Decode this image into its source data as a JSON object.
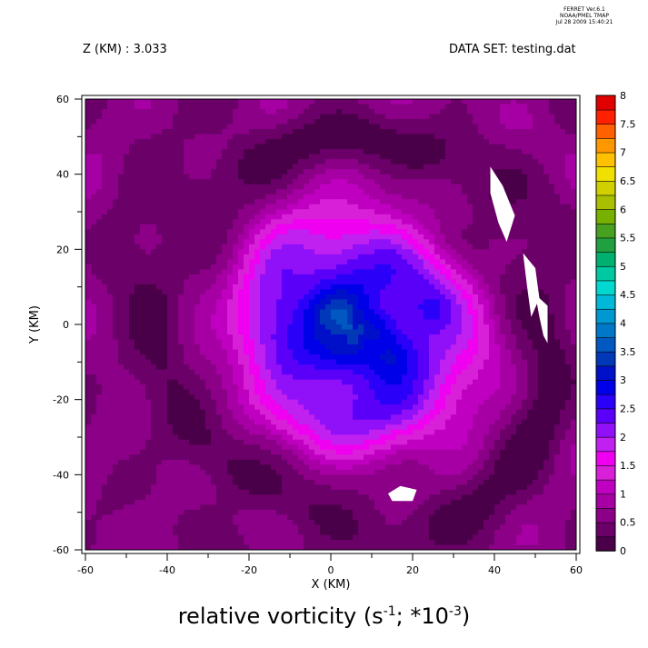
{
  "stamp": {
    "line1": "FERRET  Ver.6.1",
    "line2": "NOAA/PMEL TMAP",
    "line3": "Jul 28 2009 15:40:21"
  },
  "header": {
    "left": "Z (KM) : 3.033",
    "right": "DATA SET: testing.dat"
  },
  "caption": {
    "text_a": "relative vorticity (s",
    "exp1": "-1",
    "text_b": "; *10",
    "exp2": "-3",
    "text_c": ")"
  },
  "chart_data": {
    "type": "heatmap",
    "title": "relative vorticity (s-1; *10-3)",
    "xlabel": "X (KM)",
    "ylabel": "Y (KM)",
    "xlim": [
      -60,
      60
    ],
    "ylim": [
      -60,
      60
    ],
    "x_ticks": [
      -60,
      -40,
      -20,
      0,
      20,
      40,
      60
    ],
    "y_ticks": [
      -60,
      -40,
      -20,
      0,
      20,
      40,
      60
    ],
    "z_level_km": 3.033,
    "colorbar": {
      "levels": [
        0,
        0.25,
        0.5,
        0.75,
        1,
        1.25,
        1.5,
        1.75,
        2,
        2.25,
        2.5,
        2.75,
        3,
        3.25,
        3.5,
        3.75,
        4,
        4.25,
        4.5,
        4.75,
        5,
        5.25,
        5.5,
        5.75,
        6,
        6.25,
        6.5,
        6.75,
        7,
        7.25,
        7.5,
        7.75,
        8
      ],
      "labels": [
        "0",
        "0.5",
        "1",
        "1.5",
        "2",
        "2.5",
        "3",
        "3.5",
        "4",
        "4.5",
        "5",
        "5.5",
        "6",
        "6.5",
        "7",
        "7.5",
        "8"
      ],
      "colors": [
        "#4a0048",
        "#6a0068",
        "#8c0088",
        "#a600a4",
        "#c000c0",
        "#d820d8",
        "#f000f0",
        "#c020f0",
        "#9010f8",
        "#5a00f8",
        "#2a00f8",
        "#0000e8",
        "#0010c8",
        "#0038b8",
        "#0058c0",
        "#0078c8",
        "#0098d0",
        "#00b8d8",
        "#00d8d0",
        "#00c8a0",
        "#00b070",
        "#20a040",
        "#48a020",
        "#78b000",
        "#a8c000",
        "#d0d000",
        "#f0e000",
        "#ffc000",
        "#ff9800",
        "#ff6000",
        "#ff2000",
        "#e00000",
        "#a00000",
        "#700000"
      ]
    },
    "field_shape": "vortex: low vorticity (0-0.75) in the outer domain, a pink ring (1-1.75) around radius ~25-35 km, and a blue core (2-3.25) centred near (7, -2)"
  }
}
